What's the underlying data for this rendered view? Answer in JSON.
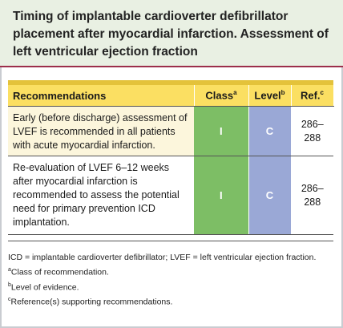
{
  "title": "Timing of implantable cardioverter defibrillator placement after myocardial infarction. Assessment of left ventricular ejection fraction",
  "table": {
    "headers": {
      "recommendations": "Recommendations",
      "class": "Class",
      "class_sup": "a",
      "level": "Level",
      "level_sup": "b",
      "ref": "Ref.",
      "ref_sup": "c"
    },
    "rows": [
      {
        "text": "Early (before discharge) assessment of LVEF is recommended in all patients with acute myocardial infarction.",
        "class": "I",
        "level": "C",
        "ref": "286–288"
      },
      {
        "text": "Re-evaluation of LVEF 6–12 weeks after myocardial infarction is recommended to assess the potential need for primary prevention ICD implantation.",
        "class": "I",
        "level": "C",
        "ref": "286–288"
      }
    ]
  },
  "footnotes": {
    "abbrev": "ICD = implantable cardioverter defibrillator; LVEF = left ventricular ejection fraction.",
    "a_mark": "a",
    "a": "Class of recommendation.",
    "b_mark": "b",
    "b": "Level of evidence.",
    "c_mark": "c",
    "c": "Reference(s) supporting recommendations."
  },
  "colors": {
    "title_bg": "#e9f0e3",
    "title_rule": "#9c2e4b",
    "header_bg": "#fbdf62",
    "class_bg": "#7dbe65",
    "level_bg": "#9aa8d6",
    "row_tint": "#fcf6dc"
  }
}
